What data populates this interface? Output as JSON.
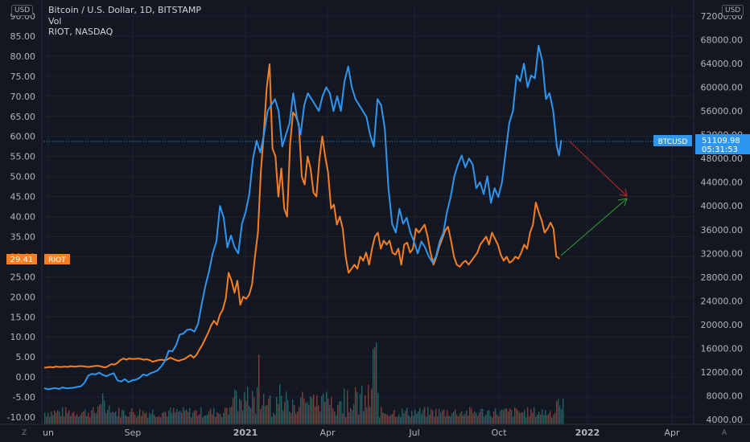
{
  "header": {
    "left_currency": "USD",
    "right_currency": "USD",
    "lines": [
      "Bitcoin / U.S. Dollar, 1D, BITSTAMP",
      "Vol",
      "RIOT, NASDAQ"
    ]
  },
  "footer": {
    "left_mark": "Z",
    "right_mark": "A"
  },
  "colors": {
    "bg": "#131722",
    "btc": "#2f96f0",
    "riot": "#f57f22",
    "vol_up": "#26a69a",
    "vol_down": "#ef5350",
    "grid": "#1e222d",
    "arrow_down": "#c62828",
    "arrow_up": "#2e9e2e"
  },
  "chart_data": {
    "type": "line",
    "x_axis": {
      "labels": [
        "un",
        "Sep",
        "2021",
        "Apr",
        "Jul",
        "Oct",
        "2022",
        "Apr"
      ]
    },
    "left_axis": {
      "range": [
        -12.5,
        92.5
      ],
      "ticks": [
        -10,
        -5,
        0,
        5,
        10,
        15,
        20,
        25,
        30,
        35,
        40,
        45,
        50,
        55,
        60,
        65,
        70,
        75,
        80,
        85,
        90
      ],
      "tick_labels": [
        "-10.00",
        "-5.00",
        "0.00",
        "5.00",
        "10.00",
        "15.00",
        "20.00",
        "25.00",
        "30.00",
        "35.00",
        "40.00",
        "45.00",
        "50.00",
        "55.00",
        "60.00",
        "65.00",
        "70.00",
        "75.00",
        "80.00",
        "85.00",
        "90.00"
      ]
    },
    "right_axis": {
      "ticks": [
        4000,
        8000,
        12000,
        16000,
        20000,
        24000,
        28000,
        32000,
        36000,
        40000,
        44000,
        48000,
        52000,
        56000,
        60000,
        64000,
        68000,
        72000
      ],
      "tick_labels": [
        "4000.00",
        "8000.00",
        "12000.00",
        "16000.00",
        "20000.00",
        "24000.00",
        "28000.00",
        "32000.00",
        "36000.00",
        "40000.00",
        "44000.00",
        "48000.00",
        "52000.00",
        "56000.00",
        "60000.00",
        "64000.00",
        "68000.00",
        "72000.00"
      ]
    },
    "btc_series": {
      "name": "BTCUSD",
      "points": [
        [
          0,
          9300
        ],
        [
          5,
          9100
        ],
        [
          10,
          9200
        ],
        [
          15,
          9300
        ],
        [
          20,
          9150
        ],
        [
          25,
          9400
        ],
        [
          30,
          9250
        ],
        [
          35,
          9300
        ],
        [
          40,
          9350
        ],
        [
          45,
          9500
        ],
        [
          50,
          9600
        ],
        [
          55,
          10200
        ],
        [
          60,
          11400
        ],
        [
          65,
          11700
        ],
        [
          70,
          11600
        ],
        [
          75,
          11900
        ],
        [
          80,
          11500
        ],
        [
          85,
          11300
        ],
        [
          90,
          11600
        ],
        [
          95,
          11800
        ],
        [
          100,
          10600
        ],
        [
          105,
          10400
        ],
        [
          110,
          10800
        ],
        [
          115,
          10300
        ],
        [
          120,
          10600
        ],
        [
          125,
          10700
        ],
        [
          130,
          11000
        ],
        [
          135,
          11600
        ],
        [
          140,
          11400
        ],
        [
          145,
          11800
        ],
        [
          150,
          12000
        ],
        [
          155,
          12300
        ],
        [
          160,
          13000
        ],
        [
          165,
          13900
        ],
        [
          170,
          15600
        ],
        [
          175,
          15500
        ],
        [
          180,
          16500
        ],
        [
          185,
          18300
        ],
        [
          190,
          18500
        ],
        [
          195,
          19100
        ],
        [
          200,
          19200
        ],
        [
          205,
          18800
        ],
        [
          210,
          20100
        ],
        [
          215,
          23500
        ],
        [
          220,
          26500
        ],
        [
          225,
          29000
        ],
        [
          230,
          32000
        ],
        [
          235,
          34000
        ],
        [
          240,
          40000
        ],
        [
          245,
          38000
        ],
        [
          250,
          33000
        ],
        [
          255,
          35000
        ],
        [
          260,
          33000
        ],
        [
          265,
          32000
        ],
        [
          270,
          37000
        ],
        [
          275,
          39000
        ],
        [
          280,
          42000
        ],
        [
          285,
          48000
        ],
        [
          290,
          51000
        ],
        [
          295,
          49000
        ],
        [
          300,
          52000
        ],
        [
          305,
          56000
        ],
        [
          310,
          57000
        ],
        [
          315,
          58000
        ],
        [
          320,
          56000
        ],
        [
          325,
          50000
        ],
        [
          330,
          52000
        ],
        [
          335,
          54000
        ],
        [
          340,
          59000
        ],
        [
          345,
          55000
        ],
        [
          350,
          52000
        ],
        [
          355,
          57000
        ],
        [
          360,
          59000
        ],
        [
          365,
          58000
        ],
        [
          370,
          57000
        ],
        [
          375,
          56000
        ],
        [
          380,
          58500
        ],
        [
          385,
          60000
        ],
        [
          390,
          59000
        ],
        [
          395,
          56000
        ],
        [
          400,
          58500
        ],
        [
          405,
          56000
        ],
        [
          410,
          61000
        ],
        [
          415,
          63500
        ],
        [
          420,
          60000
        ],
        [
          425,
          58000
        ],
        [
          430,
          57000
        ],
        [
          435,
          56000
        ],
        [
          440,
          55000
        ],
        [
          445,
          52000
        ],
        [
          450,
          50000
        ],
        [
          455,
          58000
        ],
        [
          460,
          57000
        ],
        [
          465,
          53000
        ],
        [
          470,
          43000
        ],
        [
          475,
          37000
        ],
        [
          480,
          35500
        ],
        [
          485,
          39500
        ],
        [
          490,
          37000
        ],
        [
          495,
          38000
        ],
        [
          500,
          35500
        ],
        [
          505,
          34000
        ],
        [
          510,
          32000
        ],
        [
          515,
          34000
        ],
        [
          520,
          33000
        ],
        [
          525,
          31500
        ],
        [
          530,
          30500
        ],
        [
          535,
          31500
        ],
        [
          540,
          34000
        ],
        [
          545,
          35500
        ],
        [
          550,
          39000
        ],
        [
          555,
          41500
        ],
        [
          560,
          45000
        ],
        [
          565,
          47000
        ],
        [
          570,
          48500
        ],
        [
          575,
          46500
        ],
        [
          580,
          48000
        ],
        [
          585,
          47000
        ],
        [
          590,
          43000
        ],
        [
          595,
          44000
        ],
        [
          600,
          42000
        ],
        [
          605,
          45000
        ],
        [
          610,
          40500
        ],
        [
          615,
          43000
        ],
        [
          620,
          41500
        ],
        [
          625,
          44000
        ],
        [
          630,
          49000
        ],
        [
          635,
          54000
        ],
        [
          640,
          56000
        ],
        [
          645,
          62000
        ],
        [
          650,
          61000
        ],
        [
          655,
          64000
        ],
        [
          660,
          60000
        ],
        [
          665,
          62000
        ],
        [
          670,
          61500
        ],
        [
          675,
          67000
        ],
        [
          680,
          64500
        ],
        [
          685,
          58000
        ],
        [
          690,
          59000
        ],
        [
          695,
          56000
        ],
        [
          700,
          50000
        ],
        [
          703,
          48500
        ],
        [
          706,
          51100
        ]
      ]
    },
    "riot_series": {
      "name": "RIOT",
      "points": [
        [
          0,
          2.3
        ],
        [
          5,
          2.4
        ],
        [
          10,
          2.5
        ],
        [
          15,
          2.4
        ],
        [
          20,
          2.6
        ],
        [
          25,
          2.5
        ],
        [
          30,
          2.5
        ],
        [
          35,
          2.6
        ],
        [
          40,
          2.5
        ],
        [
          45,
          2.7
        ],
        [
          50,
          2.6
        ],
        [
          55,
          2.6
        ],
        [
          60,
          2.7
        ],
        [
          65,
          2.7
        ],
        [
          70,
          2.6
        ],
        [
          75,
          2.5
        ],
        [
          80,
          2.6
        ],
        [
          85,
          2.7
        ],
        [
          90,
          2.8
        ],
        [
          95,
          2.7
        ],
        [
          100,
          2.5
        ],
        [
          105,
          2.4
        ],
        [
          110,
          2.8
        ],
        [
          115,
          3.2
        ],
        [
          120,
          3.1
        ],
        [
          125,
          3.5
        ],
        [
          130,
          4.2
        ],
        [
          135,
          4.6
        ],
        [
          140,
          4.3
        ],
        [
          145,
          4.6
        ],
        [
          150,
          4.5
        ],
        [
          155,
          4.5
        ],
        [
          160,
          4.6
        ],
        [
          165,
          4.5
        ],
        [
          170,
          4.3
        ],
        [
          175,
          4.4
        ],
        [
          180,
          4.2
        ],
        [
          185,
          3.8
        ],
        [
          190,
          4.0
        ],
        [
          195,
          4.2
        ],
        [
          200,
          4.3
        ],
        [
          205,
          4.2
        ],
        [
          210,
          4.3
        ],
        [
          215,
          4.8
        ],
        [
          220,
          4.5
        ],
        [
          225,
          4.2
        ],
        [
          230,
          4.0
        ],
        [
          235,
          4.3
        ],
        [
          240,
          4.5
        ],
        [
          245,
          5.0
        ],
        [
          250,
          5.5
        ],
        [
          255,
          4.8
        ],
        [
          260,
          5.5
        ],
        [
          265,
          6.8
        ],
        [
          270,
          8.0
        ],
        [
          275,
          9.5
        ],
        [
          280,
          11.0
        ],
        [
          285,
          12.8
        ],
        [
          290,
          14.0
        ],
        [
          295,
          13.0
        ],
        [
          300,
          15.5
        ],
        [
          305,
          16.8
        ],
        [
          310,
          19.5
        ],
        [
          315,
          26.0
        ],
        [
          320,
          24.0
        ],
        [
          325,
          21.0
        ],
        [
          330,
          24.0
        ],
        [
          335,
          18.0
        ],
        [
          340,
          20.0
        ],
        [
          345,
          19.5
        ],
        [
          350,
          20.5
        ],
        [
          355,
          23.0
        ],
        [
          360,
          30.0
        ],
        [
          365,
          36.0
        ],
        [
          370,
          51.0
        ],
        [
          375,
          60.5
        ],
        [
          380,
          72.0
        ],
        [
          385,
          78.0
        ],
        [
          390,
          57.0
        ],
        [
          395,
          55.0
        ],
        [
          400,
          45.0
        ],
        [
          405,
          52.0
        ],
        [
          410,
          42.0
        ],
        [
          415,
          40.0
        ],
        [
          420,
          58.0
        ],
        [
          425,
          66.0
        ],
        [
          430,
          65.0
        ],
        [
          435,
          63.0
        ],
        [
          440,
          50.0
        ],
        [
          445,
          48.0
        ],
        [
          450,
          55.0
        ],
        [
          455,
          52.0
        ],
        [
          460,
          46.0
        ],
        [
          465,
          45.0
        ],
        [
          470,
          54.0
        ],
        [
          475,
          60.0
        ],
        [
          480,
          55.0
        ],
        [
          485,
          51.0
        ],
        [
          490,
          42.0
        ],
        [
          495,
          43.0
        ],
        [
          500,
          38.0
        ],
        [
          505,
          40.0
        ],
        [
          510,
          37.0
        ],
        [
          515,
          30.0
        ],
        [
          520,
          26.0
        ],
        [
          525,
          27.0
        ],
        [
          530,
          28.0
        ],
        [
          535,
          27.0
        ],
        [
          540,
          30.0
        ],
        [
          545,
          29.0
        ],
        [
          550,
          31.0
        ],
        [
          555,
          28.0
        ],
        [
          560,
          32.0
        ],
        [
          565,
          35.0
        ],
        [
          570,
          36.0
        ],
        [
          575,
          32.0
        ],
        [
          580,
          34.0
        ],
        [
          585,
          33.0
        ],
        [
          590,
          34.0
        ],
        [
          595,
          31.0
        ],
        [
          600,
          30.5
        ],
        [
          605,
          32.0
        ],
        [
          610,
          28.0
        ],
        [
          615,
          33.0
        ],
        [
          620,
          33.5
        ],
        [
          625,
          31.0
        ],
        [
          630,
          32.0
        ],
        [
          635,
          37.0
        ],
        [
          640,
          36.0
        ],
        [
          645,
          37.0
        ],
        [
          650,
          38.0
        ],
        [
          655,
          35.0
        ],
        [
          660,
          31.0
        ],
        [
          665,
          28.0
        ],
        [
          670,
          30.0
        ],
        [
          675,
          32.5
        ],
        [
          680,
          34.5
        ],
        [
          685,
          36.5
        ],
        [
          690,
          37.5
        ],
        [
          695,
          34.0
        ],
        [
          700,
          30.0
        ],
        [
          705,
          28.0
        ],
        [
          710,
          27.5
        ],
        [
          715,
          28.5
        ],
        [
          720,
          29.0
        ],
        [
          725,
          28.0
        ],
        [
          730,
          29.0
        ],
        [
          735,
          30.0
        ],
        [
          740,
          31.0
        ],
        [
          745,
          33.0
        ],
        [
          750,
          34.0
        ],
        [
          755,
          35.0
        ],
        [
          760,
          33.0
        ],
        [
          765,
          36.0
        ],
        [
          770,
          34.5
        ],
        [
          775,
          33.0
        ],
        [
          780,
          30.5
        ],
        [
          785,
          29.0
        ],
        [
          790,
          30.0
        ],
        [
          795,
          28.5
        ],
        [
          800,
          29.0
        ],
        [
          805,
          30.0
        ],
        [
          810,
          29.5
        ],
        [
          815,
          31.0
        ],
        [
          820,
          33.0
        ],
        [
          825,
          32.0
        ],
        [
          830,
          36.0
        ],
        [
          835,
          38.0
        ],
        [
          840,
          43.5
        ],
        [
          845,
          41.0
        ],
        [
          850,
          39.0
        ],
        [
          855,
          36.0
        ],
        [
          860,
          37.0
        ],
        [
          865,
          38.5
        ],
        [
          870,
          37.0
        ],
        [
          875,
          30.0
        ],
        [
          878,
          29.8
        ],
        [
          880,
          29.41
        ]
      ]
    },
    "labels": {
      "btc_last": {
        "name": "BTCUSD",
        "value": "51109.98",
        "countdown": "05:31:53"
      },
      "riot_last": {
        "name": "RIOT",
        "value": "29.41"
      }
    }
  }
}
